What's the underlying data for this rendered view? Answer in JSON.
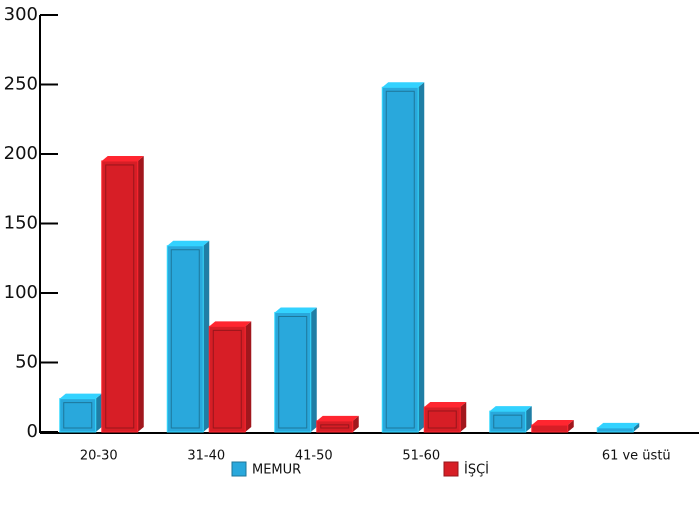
{
  "chart_data": {
    "type": "bar3d",
    "categories": [
      "20-30",
      "31-40",
      "41-50",
      "51-60",
      null,
      "61 ve üstü"
    ],
    "series": [
      {
        "name": "MEMUR",
        "color": "#29a8dc",
        "values": [
          24,
          134,
          86,
          248,
          15,
          3
        ]
      },
      {
        "name": "İŞÇİ",
        "color": "#d71e26",
        "values": [
          195,
          76,
          8,
          18,
          5,
          null
        ]
      }
    ],
    "ylim": [
      0,
      300
    ],
    "yticks": [
      0,
      50,
      100,
      150,
      200,
      250,
      300
    ]
  }
}
